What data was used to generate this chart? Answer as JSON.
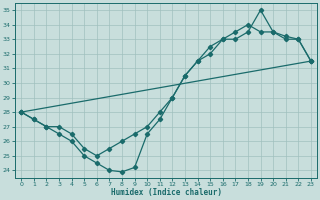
{
  "xlabel": "Humidex (Indice chaleur)",
  "xlim": [
    -0.5,
    23.5
  ],
  "ylim": [
    23.5,
    35.5
  ],
  "xticks": [
    0,
    1,
    2,
    3,
    4,
    5,
    6,
    7,
    8,
    9,
    10,
    11,
    12,
    13,
    14,
    15,
    16,
    17,
    18,
    19,
    20,
    21,
    22,
    23
  ],
  "yticks": [
    24,
    25,
    26,
    27,
    28,
    29,
    30,
    31,
    32,
    33,
    34,
    35
  ],
  "bg_color": "#c8dedc",
  "grid_color": "#a0c0be",
  "line_color": "#1a6b6b",
  "line1_x": [
    0,
    1,
    2,
    3,
    4,
    5,
    6,
    7,
    8,
    9,
    10,
    11,
    12,
    13,
    14,
    15,
    16,
    17,
    18,
    19,
    20,
    21,
    22,
    23
  ],
  "line1_y": [
    28,
    27.5,
    27,
    27,
    26.5,
    25.5,
    25,
    25.5,
    26,
    26.5,
    27,
    28,
    29,
    30.5,
    31.5,
    32.5,
    33,
    33.5,
    34,
    33.5,
    33.5,
    33,
    33,
    31.5
  ],
  "line2_x": [
    0,
    1,
    2,
    3,
    4,
    5,
    6,
    7,
    8,
    9,
    10,
    11,
    12,
    13,
    14,
    15,
    16,
    17,
    18,
    19,
    20,
    21,
    22,
    23
  ],
  "line2_y": [
    28,
    27.5,
    27,
    26.5,
    26,
    25,
    24.5,
    24,
    23.9,
    24.2,
    26.5,
    27.5,
    29,
    30.5,
    31.5,
    32,
    33,
    33,
    33.5,
    35,
    33.5,
    33.2,
    33,
    31.5
  ],
  "line3_x": [
    0,
    23
  ],
  "line3_y": [
    28,
    31.5
  ]
}
